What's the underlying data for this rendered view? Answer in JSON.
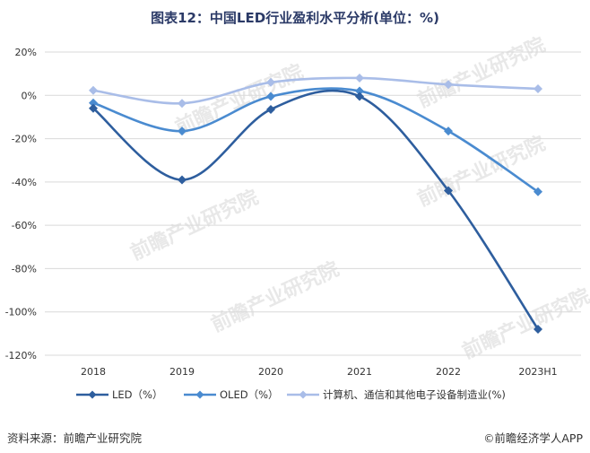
{
  "title": "图表12：中国LED行业盈利水平分析(单位：%)",
  "source_label": "资料来源：前瞻产业研究院",
  "brand_label": "前瞻经济学人APP",
  "brand_copyright": "©",
  "watermark_text": "前瞻产业研究院",
  "colors": {
    "title": "#2b3a67",
    "grid": "#d9d9d9",
    "led": "#2e5e9e",
    "oled": "#4a8bd0",
    "industry": "#a9bde8"
  },
  "chart_data": {
    "type": "line",
    "categories": [
      "2018",
      "2019",
      "2020",
      "2021",
      "2022",
      "2023H1"
    ],
    "ylim": [
      -120,
      20
    ],
    "yticks": [
      20,
      0,
      -20,
      -40,
      -60,
      -80,
      -100,
      -120
    ],
    "ytick_labels": [
      "20%",
      "0%",
      "-20%",
      "-40%",
      "-60%",
      "-80%",
      "-100%",
      "-120%"
    ],
    "grid": true,
    "legend_position": "bottom",
    "smooth": true,
    "marker": "diamond",
    "series": [
      {
        "name": "LED（%）",
        "color": "#2e5e9e",
        "values": [
          -6,
          -39,
          -6.5,
          -0.5,
          -44,
          -108
        ]
      },
      {
        "name": "OLED（%）",
        "color": "#4a8bd0",
        "values": [
          -3.5,
          -16.5,
          -0.5,
          2,
          -16.5,
          -44.5
        ]
      },
      {
        "name": "计算机、通信和其他电子设备制造业(%)",
        "color": "#a9bde8",
        "values": [
          2.3,
          -3.7,
          6,
          8,
          5,
          3
        ]
      }
    ]
  }
}
